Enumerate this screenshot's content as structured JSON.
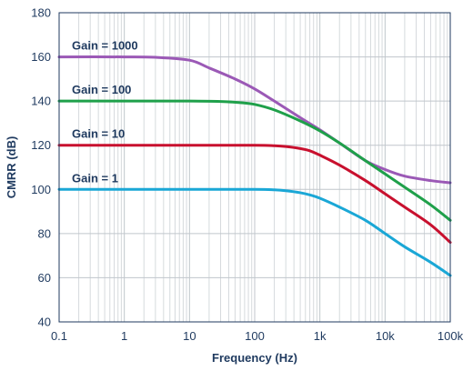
{
  "chart_data": {
    "type": "line",
    "xlabel": "Frequency (Hz)",
    "ylabel": "CMRR (dB)",
    "x_scale": "log",
    "xlim": [
      0.1,
      100000
    ],
    "ylim": [
      40,
      180
    ],
    "grid": true,
    "x_ticks": [
      {
        "value": 0.1,
        "label": "0.1"
      },
      {
        "value": 1,
        "label": "1"
      },
      {
        "value": 10,
        "label": "10"
      },
      {
        "value": 100,
        "label": "100"
      },
      {
        "value": 1000,
        "label": "1k"
      },
      {
        "value": 10000,
        "label": "10k"
      },
      {
        "value": 100000,
        "label": "100k"
      }
    ],
    "y_ticks": [
      40,
      60,
      80,
      100,
      120,
      140,
      160,
      180
    ],
    "series": [
      {
        "name": "Gain = 1000",
        "color": "#9b59b6",
        "x": [
          0.1,
          1,
          3,
          10,
          20,
          50,
          100,
          200,
          500,
          1000,
          2000,
          5000,
          10000,
          20000,
          50000,
          100000
        ],
        "y": [
          160,
          160,
          159.8,
          158.5,
          155,
          150,
          145.5,
          140,
          132.5,
          127,
          121,
          113,
          109,
          106,
          104,
          103
        ]
      },
      {
        "name": "Gain = 100",
        "color": "#1fa04a",
        "x": [
          0.1,
          1,
          10,
          30,
          60,
          100,
          200,
          500,
          1000,
          2000,
          5000,
          10000,
          20000,
          50000,
          100000
        ],
        "y": [
          140,
          140,
          140,
          139.8,
          139.3,
          138.5,
          136,
          131,
          126.5,
          121,
          113,
          107,
          101,
          93,
          86
        ]
      },
      {
        "name": "Gain = 10",
        "color": "#c8102e",
        "x": [
          0.1,
          1,
          10,
          100,
          200,
          300,
          500,
          700,
          1000,
          2000,
          5000,
          10000,
          20000,
          50000,
          100000
        ],
        "y": [
          120,
          120,
          120,
          120,
          119.8,
          119.4,
          118.5,
          117.5,
          115.5,
          111,
          104,
          98,
          92,
          84,
          76
        ]
      },
      {
        "name": "Gain = 1",
        "color": "#1aa7d6",
        "x": [
          0.1,
          1,
          10,
          100,
          200,
          300,
          500,
          700,
          1000,
          2000,
          5000,
          10000,
          20000,
          50000,
          100000
        ],
        "y": [
          100,
          100,
          100,
          100,
          99.8,
          99.4,
          98.5,
          97.5,
          96,
          92,
          86,
          80,
          74,
          67,
          61
        ]
      }
    ]
  }
}
